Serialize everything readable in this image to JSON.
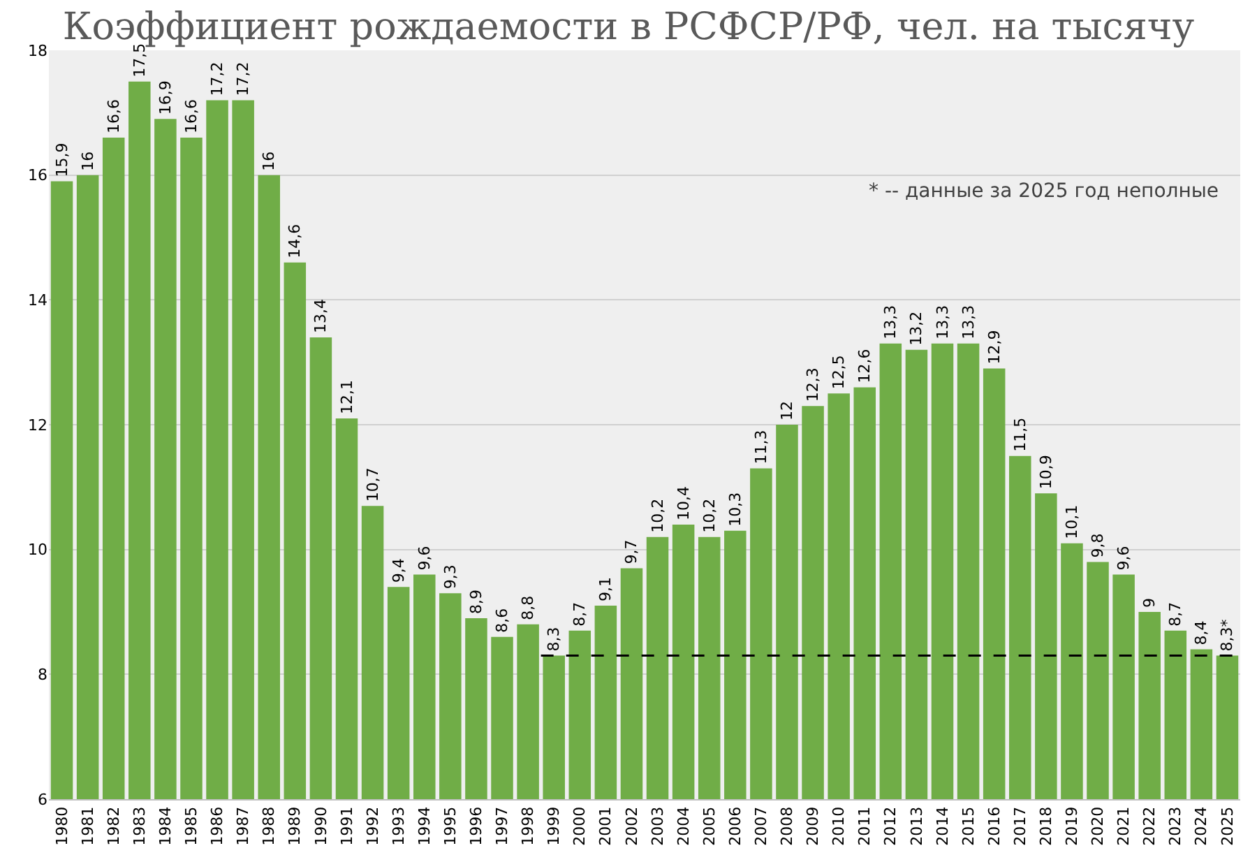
{
  "chart_data": {
    "type": "bar",
    "title": "Коэффициент рождаемости в РСФСР/РФ, чел. на тысячу",
    "categories": [
      "1980",
      "1981",
      "1982",
      "1983",
      "1984",
      "1985",
      "1986",
      "1987",
      "1988",
      "1989",
      "1990",
      "1991",
      "1992",
      "1993",
      "1994",
      "1995",
      "1996",
      "1997",
      "1998",
      "1999",
      "2000",
      "2001",
      "2002",
      "2003",
      "2004",
      "2005",
      "2006",
      "2007",
      "2008",
      "2009",
      "2010",
      "2011",
      "2012",
      "2013",
      "2014",
      "2015",
      "2016",
      "2017",
      "2018",
      "2019",
      "2020",
      "2021",
      "2022",
      "2023",
      "2024",
      "2025"
    ],
    "values": [
      15.9,
      16,
      16.6,
      17.5,
      16.9,
      16.6,
      17.2,
      17.2,
      16,
      14.6,
      13.4,
      12.1,
      10.7,
      9.4,
      9.6,
      9.3,
      8.9,
      8.6,
      8.8,
      8.3,
      8.7,
      9.1,
      9.7,
      10.2,
      10.4,
      10.2,
      10.3,
      11.3,
      12,
      12.3,
      12.5,
      12.6,
      13.3,
      13.2,
      13.3,
      13.3,
      12.9,
      11.5,
      10.9,
      10.1,
      9.8,
      9.6,
      9,
      8.7,
      8.4,
      8.3
    ],
    "value_labels": [
      "15,9",
      "16",
      "16,6",
      "17,5",
      "16,9",
      "16,6",
      "17,2",
      "17,2",
      "16",
      "14,6",
      "13,4",
      "12,1",
      "10,7",
      "9,4",
      "9,6",
      "9,3",
      "8,9",
      "8,6",
      "8,8",
      "8,3",
      "8,7",
      "9,1",
      "9,7",
      "10,2",
      "10,4",
      "10,2",
      "10,3",
      "11,3",
      "12",
      "12,3",
      "12,5",
      "12,6",
      "13,3",
      "13,2",
      "13,3",
      "13,3",
      "12,9",
      "11,5",
      "10,9",
      "10,1",
      "9,8",
      "9,6",
      "9",
      "8,7",
      "8,4",
      "8,3*"
    ],
    "color": "#70ad47",
    "ylim": [
      6,
      18
    ],
    "yticks": [
      6,
      8,
      10,
      12,
      14,
      16,
      18
    ],
    "grid": "y",
    "ref_lines": [
      {
        "axis": "y",
        "value": 8.3,
        "color": "#000000",
        "line_style": "dashed"
      }
    ],
    "annotations": [
      "* -- данные за 2025 год неполные"
    ]
  }
}
